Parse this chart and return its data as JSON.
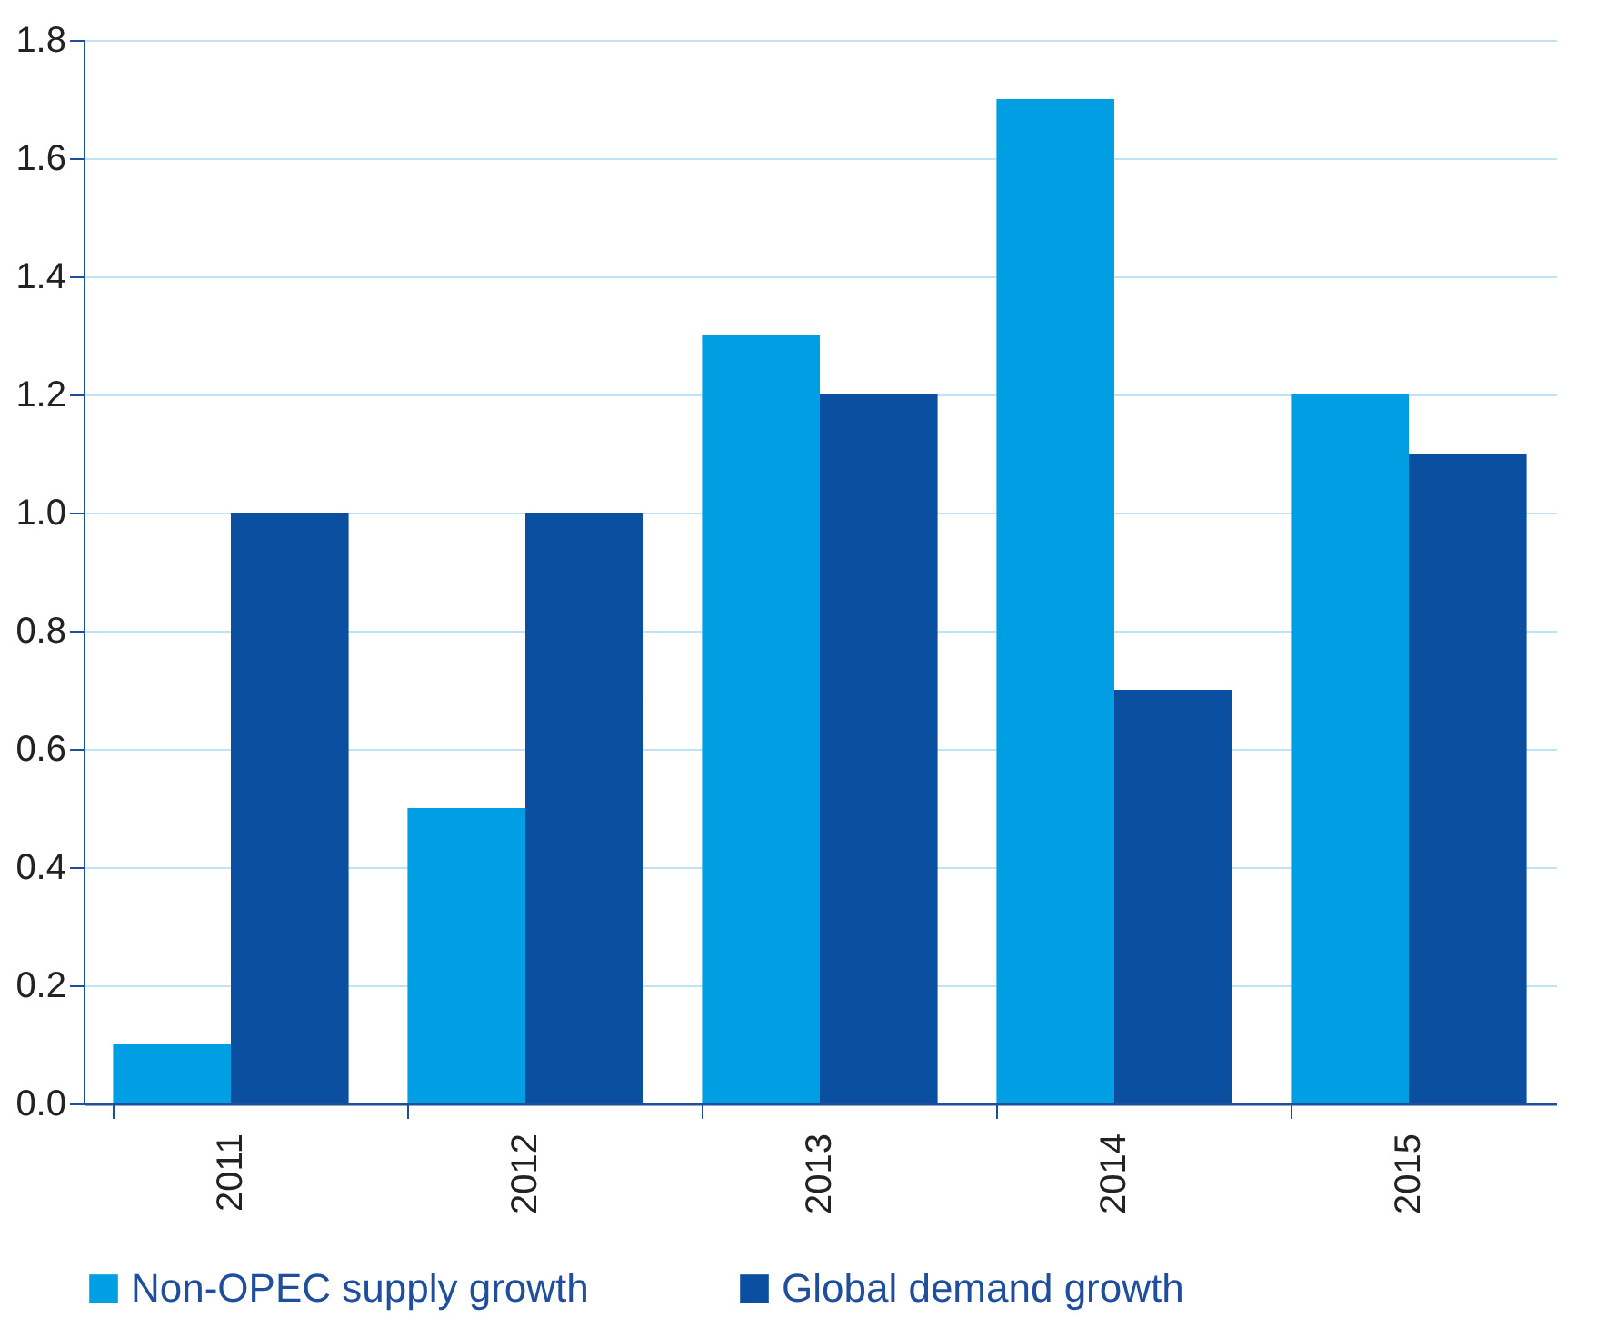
{
  "chart_data": {
    "type": "bar",
    "categories": [
      "2011",
      "2012",
      "2013",
      "2014",
      "2015"
    ],
    "series": [
      {
        "name": "Non-OPEC supply growth",
        "color": "#009fe3",
        "values": [
          0.1,
          0.5,
          1.3,
          1.7,
          1.2
        ]
      },
      {
        "name": "Global demand growth",
        "color": "#0b4fa0",
        "values": [
          1.0,
          1.0,
          1.2,
          0.7,
          1.1
        ]
      }
    ],
    "ylim": [
      0,
      1.8
    ],
    "yticks": [
      {
        "value": 0,
        "label": "0.0"
      },
      {
        "value": 0.2,
        "label": "0.2"
      },
      {
        "value": 0.4,
        "label": "0.4"
      },
      {
        "value": 0.6,
        "label": "0.6"
      },
      {
        "value": 0.8,
        "label": "0.8"
      },
      {
        "value": 1,
        "label": "1.0"
      },
      {
        "value": 1.2,
        "label": "1.2"
      },
      {
        "value": 1.4,
        "label": "1.4"
      },
      {
        "value": 1.6,
        "label": "1.6"
      },
      {
        "value": 1.8,
        "label": "1.8"
      }
    ],
    "grid": "y",
    "legend": "bottom"
  }
}
